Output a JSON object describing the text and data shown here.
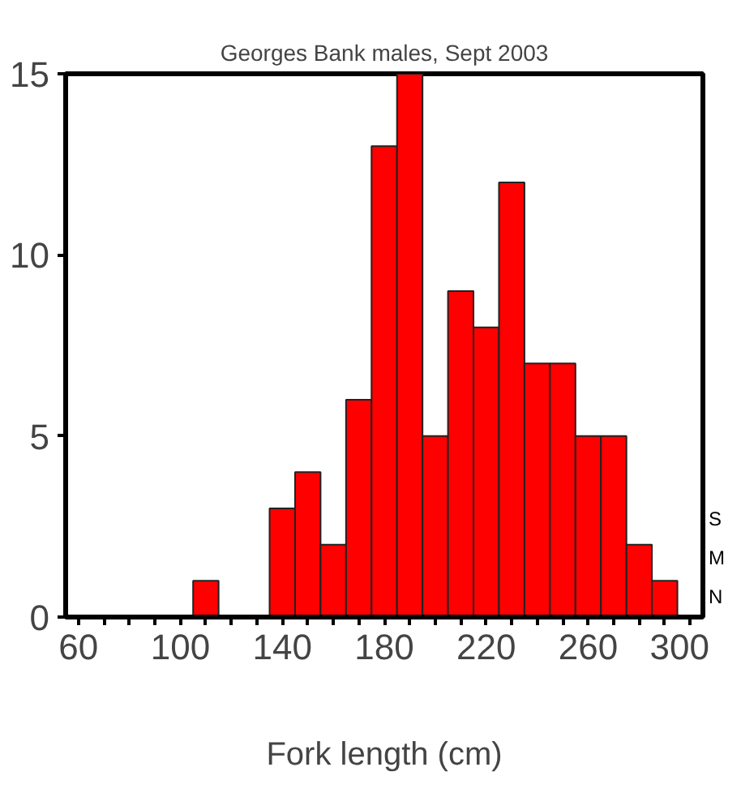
{
  "chart_data": {
    "type": "histogram",
    "title": "Georges Bank males, Sept 2003",
    "xlabel": "Fork length (cm)",
    "bins": [
      55,
      65,
      75,
      85,
      95,
      105,
      115,
      125,
      135,
      145,
      155,
      165,
      175,
      185,
      195,
      205,
      215,
      225,
      235,
      245,
      255,
      265,
      275,
      285,
      295,
      305
    ],
    "values": [
      0,
      0,
      0,
      0,
      0,
      1,
      0,
      0,
      3,
      4,
      2,
      6,
      13,
      15,
      5,
      9,
      8,
      12,
      7,
      7,
      5,
      5,
      2,
      1,
      0
    ],
    "color": "#ff0000",
    "xlim": [
      55,
      305
    ],
    "xticks": [
      60,
      {
        "value": 70,
        "label": null
      },
      {
        "value": 80,
        "label": null
      },
      {
        "value": 90,
        "label": null
      },
      100,
      {
        "value": 110,
        "label": null
      },
      {
        "value": 120,
        "label": null
      },
      {
        "value": 130,
        "label": null
      },
      140,
      {
        "value": 150,
        "label": null
      },
      {
        "value": 160,
        "label": null
      },
      {
        "value": 170,
        "label": null
      },
      180,
      {
        "value": 190,
        "label": null
      },
      {
        "value": 200,
        "label": null
      },
      {
        "value": 210,
        "label": null
      },
      220,
      {
        "value": 230,
        "label": null
      },
      {
        "value": 240,
        "label": null
      },
      {
        "value": 250,
        "label": null
      },
      260,
      {
        "value": 270,
        "label": null
      },
      {
        "value": 280,
        "label": null
      },
      {
        "value": 290,
        "label": null
      },
      300
    ],
    "ylim": [
      0,
      15
    ],
    "yticks": [
      0,
      5,
      10,
      15
    ],
    "grid": false,
    "annotations": [
      "S",
      "M",
      "N"
    ]
  }
}
